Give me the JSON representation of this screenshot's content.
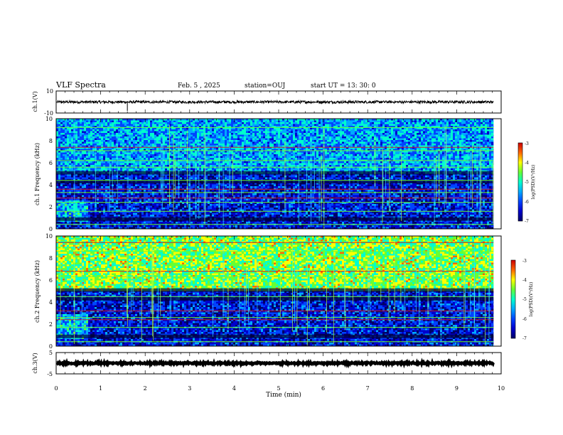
{
  "header": {
    "title": "VLF Spectra",
    "date": "Feb. 5 , 2025",
    "station": "station=OUJ",
    "start": "start UT = 13: 30: 0"
  },
  "colors": {
    "colormap": [
      "#000066",
      "#0000cc",
      "#0044ff",
      "#00aaff",
      "#00ffcc",
      "#66ff33",
      "#ffff00",
      "#ff6600",
      "#cc0000",
      "#ffffff"
    ],
    "trace": "#000000",
    "background": "#ffffff"
  },
  "chart_data": [
    {
      "id": "ch1-waveform",
      "type": "line",
      "ylabel": "ch.1(V)",
      "ylim": [
        -10,
        10
      ],
      "y_ticks": [
        "10",
        "-10"
      ],
      "xlim": [
        0,
        10
      ],
      "x_end": 9.83,
      "baseline": 0,
      "amplitude_approx": 1.2,
      "spikes": [
        {
          "x": 1.6,
          "y": -8
        }
      ]
    },
    {
      "id": "ch1-spectrogram",
      "type": "heatmap",
      "ylabel": "ch.1 Frequency (kHz)",
      "ylim": [
        0,
        10
      ],
      "y_ticks": [
        "0",
        "2",
        "4",
        "6",
        "8",
        "10"
      ],
      "xlim": [
        0,
        10
      ],
      "x_end": 9.83,
      "colorbar": {
        "label": "log(PSD)(V²/Hz)",
        "range": [
          -7,
          -3
        ],
        "ticks": [
          "-3",
          "-4",
          "-5",
          "-6",
          "-7"
        ]
      },
      "upper_band_level": 0.38,
      "broadband_burst": {
        "t": [
          0.0,
          0.7
        ],
        "f": [
          0.8,
          2.6
        ]
      },
      "green_harmonic_kHz": [
        0.4,
        1.6,
        2.4,
        3.3,
        4.4,
        5.6,
        6.2,
        7.1,
        9.2
      ],
      "red_harmonic_kHz": [
        2.8,
        3.6,
        7.4
      ]
    },
    {
      "id": "ch2-spectrogram",
      "type": "heatmap",
      "ylabel": "ch.2 Frequency (kHz)",
      "ylim": [
        0,
        10
      ],
      "y_ticks": [
        "0",
        "2",
        "4",
        "6",
        "8",
        "10"
      ],
      "xlim": [
        0,
        10
      ],
      "x_end": 9.83,
      "colorbar": {
        "label": "log(PSD)(V²/Hz)",
        "range": [
          -7,
          -3
        ],
        "ticks": [
          "-3",
          "-4",
          "-5",
          "-6",
          "-7"
        ]
      },
      "upper_band_level": 0.62,
      "broadband_burst": {
        "t": [
          0.0,
          0.7
        ],
        "f": [
          0.8,
          3.0
        ]
      },
      "green_harmonic_kHz": [
        0.4,
        1.7,
        2.6,
        4.5,
        6.3,
        8.6
      ],
      "red_harmonic_kHz": [
        2.4,
        3.2,
        6.8,
        9.4
      ]
    },
    {
      "id": "ch3-waveform",
      "type": "line",
      "ylabel": "ch.3(V)",
      "ylim": [
        -5,
        5
      ],
      "y_ticks": [
        "5",
        "-5"
      ],
      "xlim": [
        0,
        10
      ],
      "x_end": 9.83,
      "baseline": 0,
      "amplitude_approx": 0.3
    }
  ],
  "x_axis": {
    "label": "Time (min)",
    "ticks": [
      "0",
      "1",
      "2",
      "3",
      "4",
      "5",
      "6",
      "7",
      "8",
      "9",
      "10"
    ],
    "range": [
      0,
      10
    ]
  }
}
